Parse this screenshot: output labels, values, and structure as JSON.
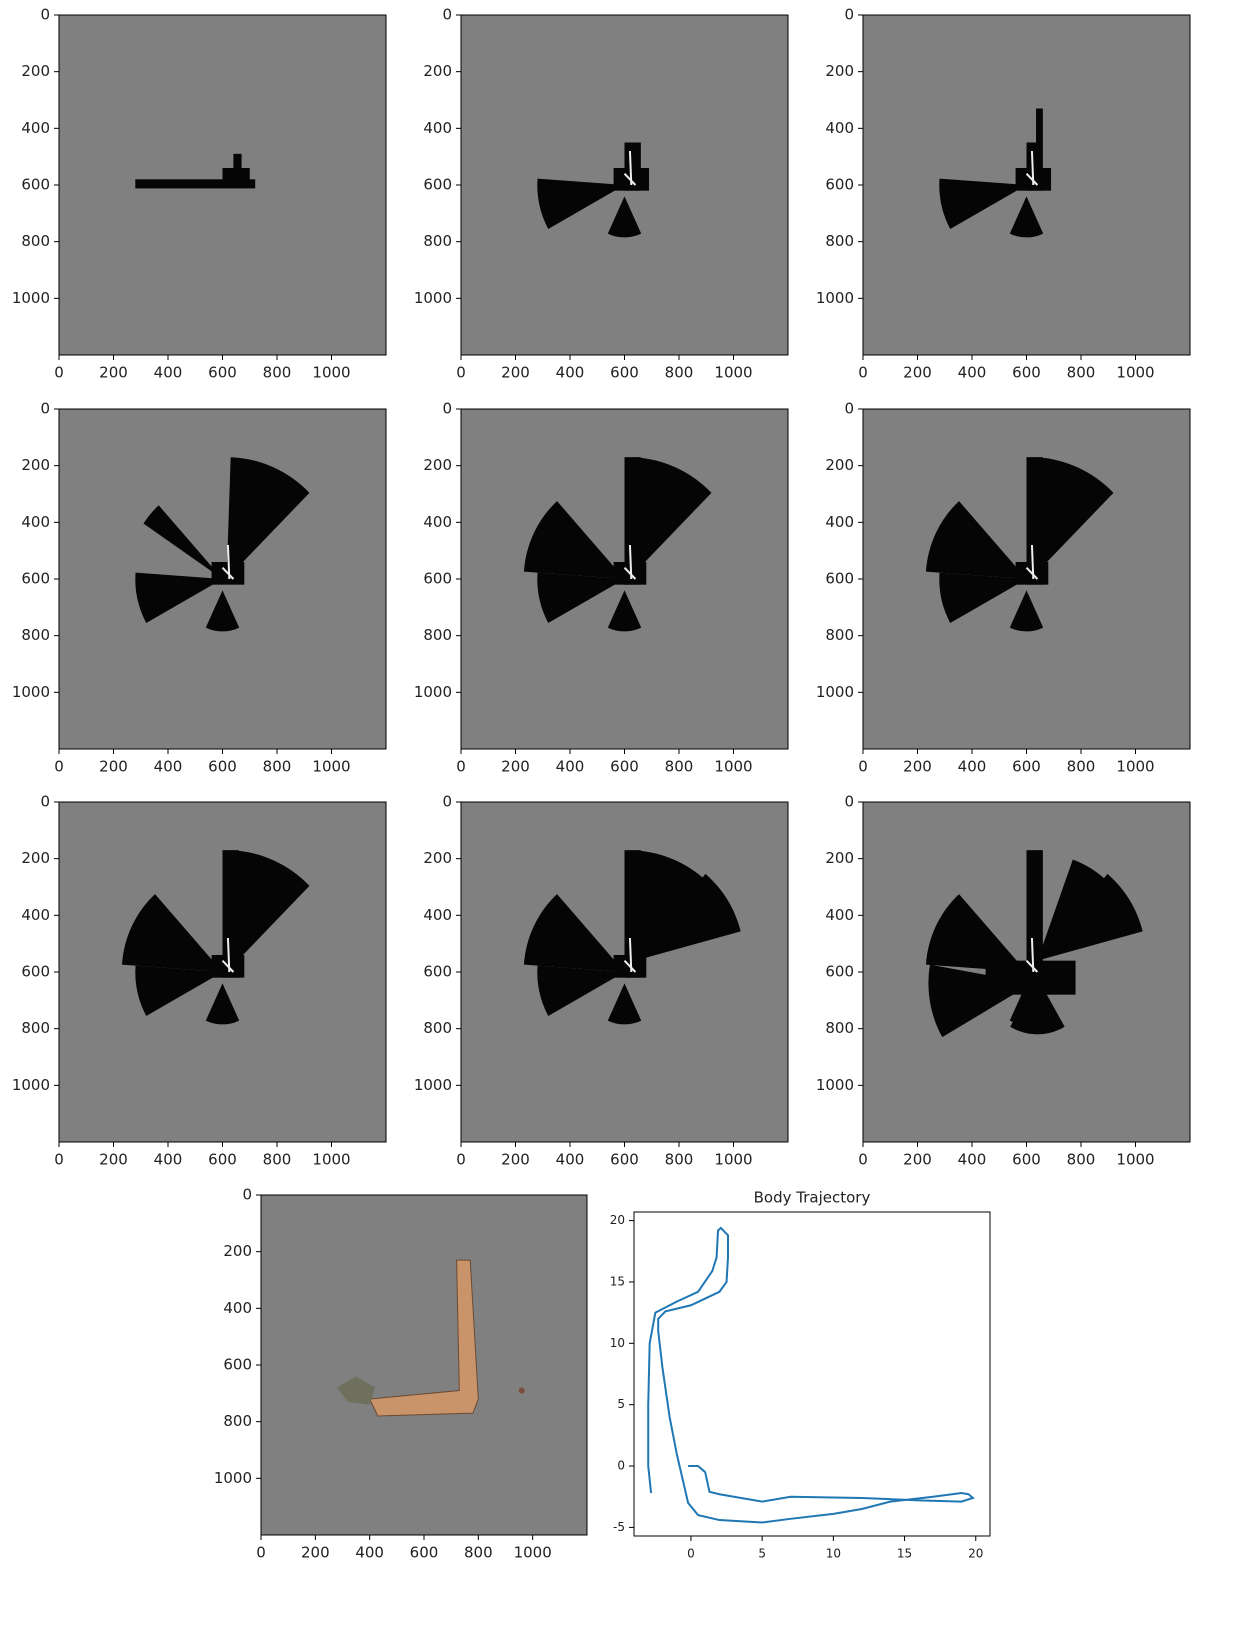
{
  "chart_data": [
    {
      "type": "image",
      "xlim": [
        0,
        1200
      ],
      "ylim": [
        1200,
        0
      ],
      "xticks": [
        0,
        200,
        400,
        600,
        800,
        1000
      ],
      "yticks": [
        0,
        200,
        400,
        600,
        800,
        1000
      ]
    },
    {
      "type": "image",
      "xlim": [
        0,
        1200
      ],
      "ylim": [
        1200,
        0
      ],
      "xticks": [
        0,
        200,
        400,
        600,
        800,
        1000
      ],
      "yticks": [
        0,
        200,
        400,
        600,
        800,
        1000
      ]
    },
    {
      "type": "image",
      "xlim": [
        0,
        1200
      ],
      "ylim": [
        1200,
        0
      ],
      "xticks": [
        0,
        200,
        400,
        600,
        800,
        1000
      ],
      "yticks": [
        0,
        200,
        400,
        600,
        800,
        1000
      ]
    },
    {
      "type": "image",
      "xlim": [
        0,
        1200
      ],
      "ylim": [
        1200,
        0
      ],
      "xticks": [
        0,
        200,
        400,
        600,
        800,
        1000
      ],
      "yticks": [
        0,
        200,
        400,
        600,
        800,
        1000
      ]
    },
    {
      "type": "image",
      "xlim": [
        0,
        1200
      ],
      "ylim": [
        1200,
        0
      ],
      "xticks": [
        0,
        200,
        400,
        600,
        800,
        1000
      ],
      "yticks": [
        0,
        200,
        400,
        600,
        800,
        1000
      ]
    },
    {
      "type": "image",
      "xlim": [
        0,
        1200
      ],
      "ylim": [
        1200,
        0
      ],
      "xticks": [
        0,
        200,
        400,
        600,
        800,
        1000
      ],
      "yticks": [
        0,
        200,
        400,
        600,
        800,
        1000
      ]
    },
    {
      "type": "image",
      "xlim": [
        0,
        1200
      ],
      "ylim": [
        1200,
        0
      ],
      "xticks": [
        0,
        200,
        400,
        600,
        800,
        1000
      ],
      "yticks": [
        0,
        200,
        400,
        600,
        800,
        1000
      ]
    },
    {
      "type": "image",
      "xlim": [
        0,
        1200
      ],
      "ylim": [
        1200,
        0
      ],
      "xticks": [
        0,
        200,
        400,
        600,
        800,
        1000
      ],
      "yticks": [
        0,
        200,
        400,
        600,
        800,
        1000
      ]
    },
    {
      "type": "image",
      "xlim": [
        0,
        1200
      ],
      "ylim": [
        1200,
        0
      ],
      "xticks": [
        0,
        200,
        400,
        600,
        800,
        1000
      ],
      "yticks": [
        0,
        200,
        400,
        600,
        800,
        1000
      ]
    },
    {
      "type": "image",
      "xlim": [
        0,
        1200
      ],
      "ylim": [
        1200,
        0
      ],
      "xticks": [
        0,
        200,
        400,
        600,
        800,
        1000
      ],
      "yticks": [
        0,
        200,
        400,
        600,
        800,
        1000
      ]
    },
    {
      "type": "line",
      "title": "Body Trajectory",
      "color": "#1f77b4",
      "x": [
        -0.2,
        0.5,
        1,
        1.3,
        2,
        5,
        7,
        12,
        16,
        19,
        19.8,
        19.5,
        19,
        17,
        14,
        12,
        10,
        7,
        5,
        2,
        0.5,
        -0.2,
        -0.6,
        -1,
        -1.5,
        -2,
        -2.3,
        -2.3,
        -1.8,
        0,
        2,
        2.5,
        2.6,
        2.6,
        2.1,
        1.9,
        1.8,
        1.5,
        0.5,
        -1,
        -2.5,
        -2.9,
        -3.0,
        -3.0,
        -2.8
      ],
      "values": [
        0,
        0,
        -0.5,
        -2.1,
        -2.3,
        -2.9,
        -2.5,
        -2.6,
        -2.8,
        -2.9,
        -2.6,
        -2.3,
        -2.2,
        -2.5,
        -2.9,
        -3.5,
        -3.9,
        -4.3,
        -4.6,
        -4.4,
        -4.0,
        -3.0,
        -1.0,
        1,
        4,
        8,
        11,
        12,
        12.6,
        13.1,
        14.2,
        15,
        17,
        18.8,
        19.4,
        19.2,
        17,
        15.9,
        14.2,
        13.4,
        12.5,
        10,
        5,
        0,
        -2.2
      ],
      "xlim": [
        -4,
        21
      ],
      "ylim": [
        -5.7,
        20.7
      ],
      "xticks": [
        0,
        5,
        10,
        15,
        20
      ],
      "yticks": [
        -5,
        0,
        5,
        10,
        15,
        20
      ]
    }
  ]
}
